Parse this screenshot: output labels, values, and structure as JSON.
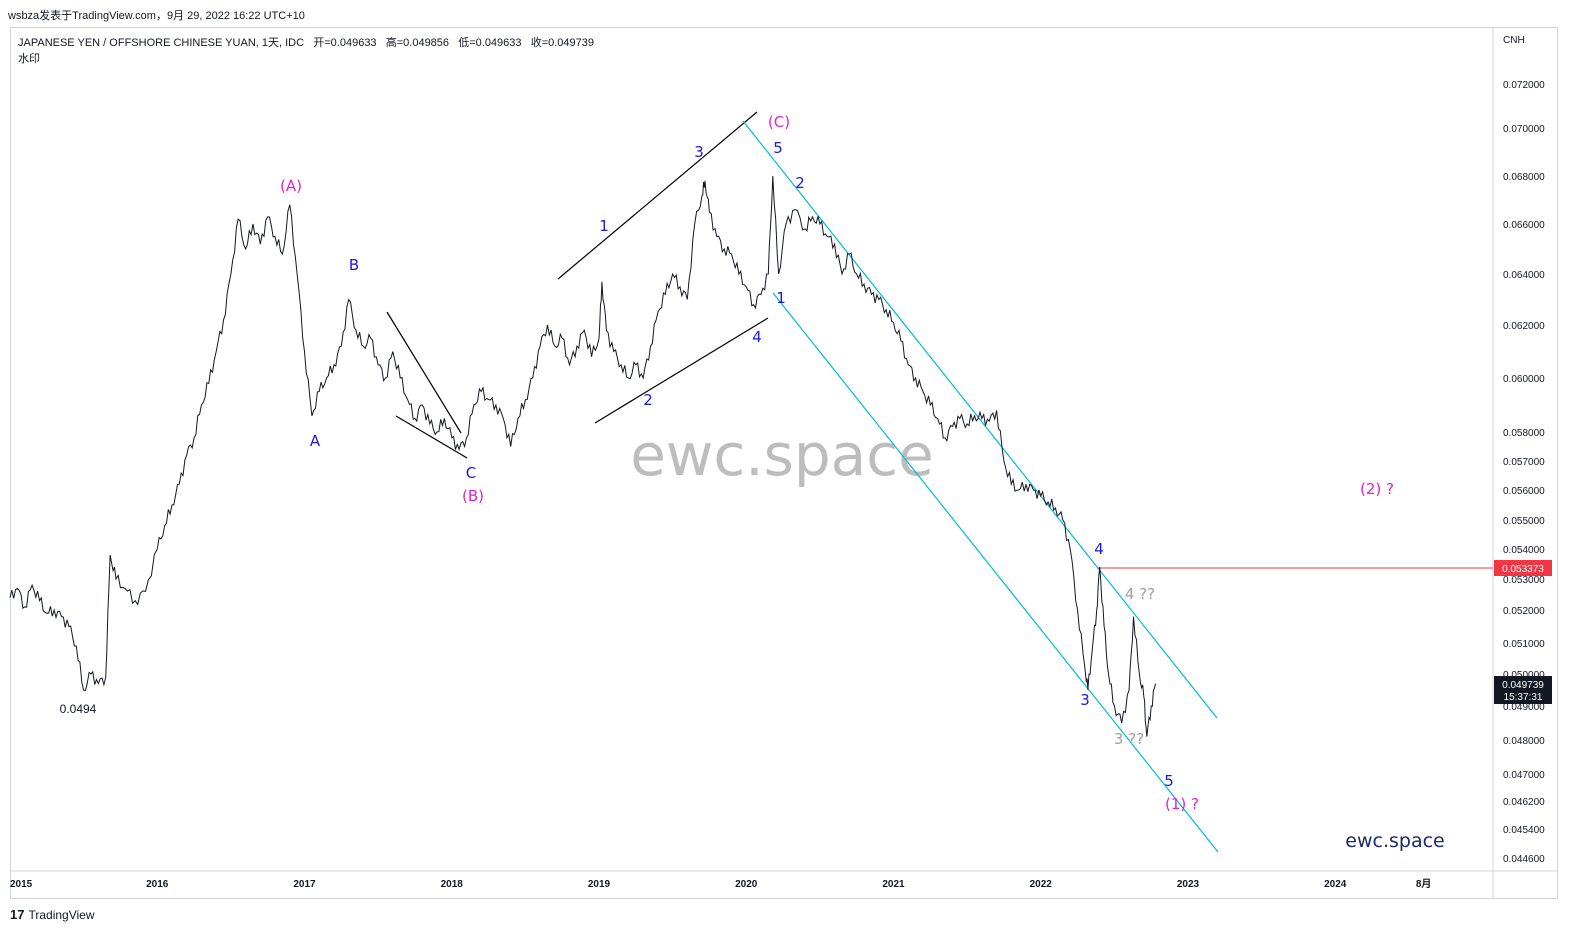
{
  "header": {
    "publisher_line": "wsbza发表于TradingView.com，9月 29, 2022 16:22 UTC+10"
  },
  "legend": {
    "symbol": "JAPANESE YEN / OFFSHORE CHINESE YUAN, 1天, IDC",
    "open": "开=0.049633",
    "high": "高=0.049856",
    "low": "低=0.049633",
    "close": "收=0.049739",
    "watermark_label": "水印"
  },
  "footer": {
    "brand": "TradingView"
  },
  "colors": {
    "price_line": "#131722",
    "channel": "#00bcd4",
    "trendline": "#000000",
    "wave_blue": "#1a1adb",
    "wave_magenta": "#e020d4",
    "alert_red": "#f23645",
    "grey_label": "#a0a0a0"
  },
  "chart_data": {
    "type": "line",
    "currency": "CNH",
    "title": "JAPANESE YEN / OFFSHORE CHINESE YUAN, 1天, IDC",
    "y_ticks": [
      "0.072000",
      "0.070000",
      "0.068000",
      "0.066000",
      "0.064000",
      "0.062000",
      "0.060000",
      "0.058000",
      "0.057000",
      "0.056000",
      "0.055000",
      "0.054000",
      "0.053000",
      "0.052000",
      "0.051000",
      "0.050000",
      "0.049000",
      "0.048000",
      "0.047000",
      "0.046200",
      "0.045400",
      "0.044600"
    ],
    "y_tick_values": [
      0.072,
      0.07,
      0.068,
      0.066,
      0.064,
      0.062,
      0.06,
      0.058,
      0.057,
      0.056,
      0.055,
      0.054,
      0.053,
      0.052,
      0.051,
      0.05,
      0.049,
      0.048,
      0.047,
      0.0462,
      0.0454,
      0.0446
    ],
    "x_ticks": [
      "2015",
      "2016",
      "2017",
      "2018",
      "2019",
      "2020",
      "2021",
      "2022",
      "2023",
      "2024",
      "8月"
    ],
    "x_tick_values": [
      2015.0,
      2016.0,
      2017.0,
      2018.0,
      2019.0,
      2020.0,
      2021.0,
      2022.0,
      2023.0,
      2024.0,
      2024.6
    ],
    "series": [
      {
        "values": [
          [
            2015.0,
            0.0524
          ],
          [
            2015.05,
            0.0527
          ],
          [
            2015.1,
            0.0521
          ],
          [
            2015.15,
            0.0528
          ],
          [
            2015.2,
            0.0523
          ],
          [
            2015.25,
            0.0519
          ],
          [
            2015.3,
            0.052
          ],
          [
            2015.35,
            0.0518
          ],
          [
            2015.4,
            0.0515
          ],
          [
            2015.45,
            0.0509
          ],
          [
            2015.5,
            0.0495
          ],
          [
            2015.55,
            0.05
          ],
          [
            2015.6,
            0.0497
          ],
          [
            2015.65,
            0.0499
          ],
          [
            2015.68,
            0.0538
          ],
          [
            2015.72,
            0.053
          ],
          [
            2015.78,
            0.0527
          ],
          [
            2015.85,
            0.0523
          ],
          [
            2015.92,
            0.0526
          ],
          [
            2016.0,
            0.054
          ],
          [
            2016.05,
            0.0548
          ],
          [
            2016.1,
            0.0555
          ],
          [
            2016.15,
            0.0562
          ],
          [
            2016.2,
            0.0572
          ],
          [
            2016.25,
            0.0578
          ],
          [
            2016.3,
            0.059
          ],
          [
            2016.35,
            0.0598
          ],
          [
            2016.4,
            0.061
          ],
          [
            2016.45,
            0.0622
          ],
          [
            2016.5,
            0.064
          ],
          [
            2016.55,
            0.0662
          ],
          [
            2016.6,
            0.065
          ],
          [
            2016.65,
            0.066
          ],
          [
            2016.7,
            0.0652
          ],
          [
            2016.75,
            0.0663
          ],
          [
            2016.8,
            0.0655
          ],
          [
            2016.85,
            0.0648
          ],
          [
            2016.9,
            0.0668
          ],
          [
            2016.95,
            0.064
          ],
          [
            2017.0,
            0.061
          ],
          [
            2017.05,
            0.0586
          ],
          [
            2017.1,
            0.0595
          ],
          [
            2017.15,
            0.06
          ],
          [
            2017.2,
            0.0605
          ],
          [
            2017.25,
            0.0612
          ],
          [
            2017.3,
            0.063
          ],
          [
            2017.35,
            0.0618
          ],
          [
            2017.4,
            0.0612
          ],
          [
            2017.45,
            0.0615
          ],
          [
            2017.5,
            0.0605
          ],
          [
            2017.55,
            0.06
          ],
          [
            2017.6,
            0.061
          ],
          [
            2017.65,
            0.06
          ],
          [
            2017.7,
            0.0592
          ],
          [
            2017.75,
            0.0585
          ],
          [
            2017.8,
            0.059
          ],
          [
            2017.85,
            0.0583
          ],
          [
            2017.9,
            0.058
          ],
          [
            2017.95,
            0.0585
          ],
          [
            2018.0,
            0.0578
          ],
          [
            2018.05,
            0.0574
          ],
          [
            2018.1,
            0.0578
          ],
          [
            2018.15,
            0.059
          ],
          [
            2018.2,
            0.0595
          ],
          [
            2018.25,
            0.0592
          ],
          [
            2018.3,
            0.059
          ],
          [
            2018.35,
            0.0585
          ],
          [
            2018.4,
            0.0575
          ],
          [
            2018.45,
            0.0585
          ],
          [
            2018.5,
            0.0592
          ],
          [
            2018.55,
            0.06
          ],
          [
            2018.6,
            0.0612
          ],
          [
            2018.65,
            0.062
          ],
          [
            2018.7,
            0.0612
          ],
          [
            2018.75,
            0.0615
          ],
          [
            2018.8,
            0.0605
          ],
          [
            2018.85,
            0.0612
          ],
          [
            2018.9,
            0.0618
          ],
          [
            2018.95,
            0.0608
          ],
          [
            2019.0,
            0.0615
          ],
          [
            2019.02,
            0.0637
          ],
          [
            2019.05,
            0.0618
          ],
          [
            2019.1,
            0.061
          ],
          [
            2019.15,
            0.0605
          ],
          [
            2019.2,
            0.06
          ],
          [
            2019.25,
            0.0605
          ],
          [
            2019.3,
            0.06
          ],
          [
            2019.35,
            0.0612
          ],
          [
            2019.4,
            0.0625
          ],
          [
            2019.45,
            0.0632
          ],
          [
            2019.5,
            0.064
          ],
          [
            2019.55,
            0.0635
          ],
          [
            2019.6,
            0.063
          ],
          [
            2019.65,
            0.066
          ],
          [
            2019.7,
            0.0672
          ],
          [
            2019.72,
            0.0678
          ],
          [
            2019.75,
            0.0665
          ],
          [
            2019.8,
            0.0655
          ],
          [
            2019.85,
            0.065
          ],
          [
            2019.9,
            0.0648
          ],
          [
            2019.95,
            0.064
          ],
          [
            2020.0,
            0.0635
          ],
          [
            2020.05,
            0.0628
          ],
          [
            2020.1,
            0.0632
          ],
          [
            2020.15,
            0.064
          ],
          [
            2020.18,
            0.068
          ],
          [
            2020.22,
            0.064
          ],
          [
            2020.27,
            0.066
          ],
          [
            2020.33,
            0.0666
          ],
          [
            2020.4,
            0.0658
          ],
          [
            2020.45,
            0.0663
          ],
          [
            2020.5,
            0.066
          ],
          [
            2020.55,
            0.0655
          ],
          [
            2020.6,
            0.0652
          ],
          [
            2020.65,
            0.064
          ],
          [
            2020.7,
            0.0648
          ],
          [
            2020.75,
            0.064
          ],
          [
            2020.8,
            0.0636
          ],
          [
            2020.85,
            0.0632
          ],
          [
            2020.9,
            0.063
          ],
          [
            2020.95,
            0.0626
          ],
          [
            2021.0,
            0.0621
          ],
          [
            2021.05,
            0.0614
          ],
          [
            2021.1,
            0.0605
          ],
          [
            2021.15,
            0.06
          ],
          [
            2021.2,
            0.0595
          ],
          [
            2021.25,
            0.059
          ],
          [
            2021.3,
            0.0585
          ],
          [
            2021.35,
            0.0578
          ],
          [
            2021.4,
            0.0582
          ],
          [
            2021.45,
            0.0585
          ],
          [
            2021.5,
            0.0583
          ],
          [
            2021.55,
            0.0586
          ],
          [
            2021.6,
            0.0585
          ],
          [
            2021.65,
            0.0584
          ],
          [
            2021.7,
            0.0588
          ],
          [
            2021.75,
            0.057
          ],
          [
            2021.8,
            0.0562
          ],
          [
            2021.85,
            0.056
          ],
          [
            2021.9,
            0.0562
          ],
          [
            2021.95,
            0.056
          ],
          [
            2022.0,
            0.0558
          ],
          [
            2022.05,
            0.0556
          ],
          [
            2022.1,
            0.0554
          ],
          [
            2022.15,
            0.055
          ],
          [
            2022.2,
            0.054
          ],
          [
            2022.25,
            0.052
          ],
          [
            2022.3,
            0.0502
          ],
          [
            2022.32,
            0.0495
          ],
          [
            2022.35,
            0.0508
          ],
          [
            2022.38,
            0.052
          ],
          [
            2022.4,
            0.0534
          ],
          [
            2022.43,
            0.0515
          ],
          [
            2022.46,
            0.05
          ],
          [
            2022.5,
            0.049
          ],
          [
            2022.55,
            0.0485
          ],
          [
            2022.6,
            0.0495
          ],
          [
            2022.63,
            0.0518
          ],
          [
            2022.67,
            0.05
          ],
          [
            2022.7,
            0.0493
          ],
          [
            2022.72,
            0.0481
          ],
          [
            2022.75,
            0.049
          ],
          [
            2022.78,
            0.0497
          ]
        ]
      }
    ],
    "price_labels": {
      "last_price": "0.049739",
      "countdown": "15:37:31",
      "horizontal_level": "0.053373",
      "low_annotation": "0.0494"
    },
    "wave_labels": [
      "(A)",
      "A",
      "B",
      "C",
      "(B)",
      "1",
      "2",
      "3",
      "4",
      "5",
      "(C)",
      "5",
      "2",
      "1",
      "3",
      "4",
      "4 ??",
      "3 ??",
      "5",
      "(1) ?",
      "(2) ?"
    ],
    "watermarks": [
      "ewc.space",
      "ewc.space"
    ]
  }
}
